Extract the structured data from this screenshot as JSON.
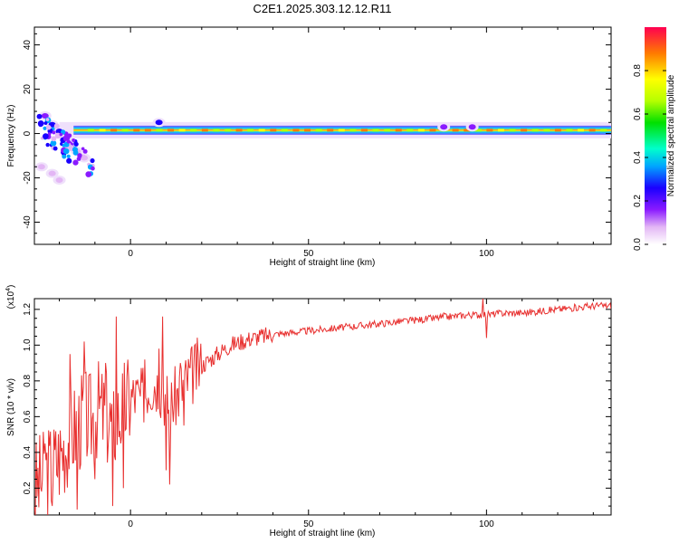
{
  "title": "C2E1.2025.303.12.12.R11",
  "colors": {
    "signal": "#e8302f",
    "axis": "#000000"
  },
  "chart_data": [
    {
      "type": "heatmap",
      "xlabel": "Height of straight line (km)",
      "ylabel": "Frequency (Hz)",
      "xlim": [
        -27,
        135
      ],
      "ylim": [
        -50,
        48
      ],
      "x_ticks": [
        0,
        50,
        100
      ],
      "y_ticks": [
        -40,
        -20,
        0,
        20,
        40
      ],
      "x_tick_labels": [
        "0",
        "50",
        "100"
      ],
      "y_tick_labels": [
        "-40",
        "-20",
        "0",
        "20",
        "40"
      ],
      "colorbar": {
        "label": "Normalized spectral amplitude",
        "range": [
          0,
          1
        ],
        "ticks": [
          0.0,
          0.2,
          0.4,
          0.6,
          0.8
        ],
        "tick_labels": [
          "0.0",
          "0.2",
          "0.4",
          "0.6",
          "0.8"
        ]
      },
      "main_band_frequency_hz": 1.5,
      "features": [
        {
          "x": -24,
          "f": 8,
          "amp": 0.25
        },
        {
          "x": -22,
          "f": 4,
          "amp": 0.35
        },
        {
          "x": -20,
          "f": 1,
          "amp": 0.3
        },
        {
          "x": -18,
          "f": -2,
          "amp": 0.25
        },
        {
          "x": -17,
          "f": -5,
          "amp": 0.2
        },
        {
          "x": -15,
          "f": -8,
          "amp": 0.15
        },
        {
          "x": -13,
          "f": -11,
          "amp": 0.12
        },
        {
          "x": -25,
          "f": -15,
          "amp": 0.15
        },
        {
          "x": -22,
          "f": -18,
          "amp": 0.15
        },
        {
          "x": -20,
          "f": -21,
          "amp": 0.12
        },
        {
          "x": 8,
          "f": 5,
          "amp": 0.3
        },
        {
          "x": 88,
          "f": 3,
          "amp": 0.2
        },
        {
          "x": 96,
          "f": 3,
          "amp": 0.2
        }
      ]
    },
    {
      "type": "line",
      "xlabel": "Height of straight line (km)",
      "ylabel": "SNR (10 * v/v)",
      "y_multiplier": "(x10",
      "y_multiplier_exp": "4",
      "y_multiplier_close": ")",
      "xlim": [
        -27,
        135
      ],
      "ylim": [
        0.05,
        1.26
      ],
      "x_ticks": [
        0,
        50,
        100
      ],
      "y_ticks": [
        0.2,
        0.4,
        0.6,
        0.8,
        1.0,
        1.2
      ],
      "x_tick_labels": [
        "0",
        "50",
        "100"
      ],
      "y_tick_labels": [
        "0.2",
        "0.4",
        "0.6",
        "0.8",
        "1.0",
        "1.2"
      ],
      "series": [
        {
          "x": [
            -27,
            -25,
            -23,
            -21,
            -19,
            -17,
            -15,
            -13,
            -11,
            -9,
            -7,
            -5,
            -3,
            -1,
            1,
            3,
            5,
            7,
            9,
            11,
            13,
            15,
            17,
            19,
            21,
            23,
            25,
            28,
            31,
            34,
            37,
            40,
            45,
            50,
            55,
            60,
            65,
            70,
            75,
            80,
            85,
            90,
            95,
            100,
            105,
            110,
            115,
            120,
            125,
            130,
            135
          ],
          "y": [
            0.2,
            0.25,
            0.3,
            0.35,
            0.42,
            0.5,
            0.55,
            0.6,
            0.58,
            0.65,
            0.6,
            0.55,
            0.62,
            0.68,
            0.72,
            0.7,
            0.78,
            0.8,
            0.75,
            0.65,
            0.72,
            0.78,
            0.83,
            0.87,
            0.9,
            0.93,
            0.96,
            1.0,
            1.02,
            1.04,
            1.05,
            1.06,
            1.07,
            1.08,
            1.09,
            1.1,
            1.11,
            1.12,
            1.13,
            1.14,
            1.15,
            1.16,
            1.17,
            1.17,
            1.18,
            1.18,
            1.19,
            1.2,
            1.21,
            1.22,
            1.22
          ]
        }
      ],
      "peaks": [
        {
          "x": -24,
          "y": 0.45
        },
        {
          "x": -22,
          "y": 0.1
        },
        {
          "x": -17,
          "y": 0.95
        },
        {
          "x": -15,
          "y": 0.08
        },
        {
          "x": -13,
          "y": 1.02
        },
        {
          "x": -10,
          "y": 0.25
        },
        {
          "x": -7,
          "y": 0.9
        },
        {
          "x": -5,
          "y": 0.1
        },
        {
          "x": -4,
          "y": 1.16
        },
        {
          "x": -2,
          "y": 0.2
        },
        {
          "x": 4,
          "y": 0.92
        },
        {
          "x": 8,
          "y": 0.98
        },
        {
          "x": 9,
          "y": 1.16
        },
        {
          "x": 10,
          "y": 0.3
        },
        {
          "x": 11,
          "y": 0.22
        },
        {
          "x": 14,
          "y": 0.9
        },
        {
          "x": 15,
          "y": 0.55
        },
        {
          "x": 88,
          "y": 1.18
        },
        {
          "x": 99,
          "y": 1.26
        },
        {
          "x": 100,
          "y": 1.04
        }
      ]
    }
  ]
}
